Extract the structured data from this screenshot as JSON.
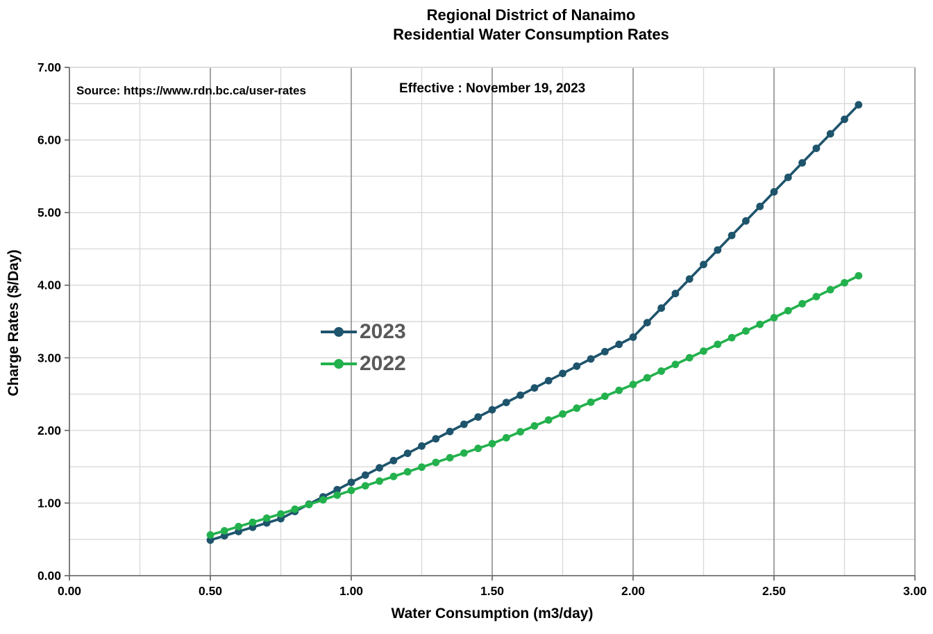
{
  "title": {
    "line1": "Regional District of Nanaimo",
    "line2": "Residential Water Consumption Rates"
  },
  "annotations": {
    "source": "Source: https://www.rdn.bc.ca/user-rates",
    "effective": "Effective : November 19, 2023"
  },
  "legend": [
    {
      "label": "2023",
      "color": "#1E546C"
    },
    {
      "label": "2022",
      "color": "#23B14D"
    }
  ],
  "colors": {
    "series_2023": "#1E546C",
    "series_2022": "#23B14D",
    "legend_text": "#595959",
    "grid_minor": "#D9D9D9",
    "grid_major": "#8C8C8C",
    "axis_line": "#6E6E6E",
    "tick_text": "#000000"
  },
  "chart_data": {
    "type": "line",
    "title": "Regional District of Nanaimo — Residential Water Consumption Rates",
    "xlabel": "Water Consumption (m3/day)",
    "ylabel": "Charge Rates ($/Day)",
    "xlim": [
      0.0,
      3.0
    ],
    "ylim": [
      0.0,
      7.0
    ],
    "x_ticks": [
      "0.00",
      "0.50",
      "1.00",
      "1.50",
      "2.00",
      "2.50",
      "3.00"
    ],
    "y_ticks": [
      "0.00",
      "1.00",
      "2.00",
      "3.00",
      "4.00",
      "5.00",
      "6.00",
      "7.00"
    ],
    "grid": {
      "vertical_minor_step": 0.25,
      "vertical_major_step": 0.5,
      "horizontal_step": 0.5
    },
    "legend_position": "center-left inside plot",
    "x": [
      0.5,
      0.55,
      0.6,
      0.65,
      0.7,
      0.75,
      0.8,
      0.85,
      0.9,
      0.95,
      1.0,
      1.05,
      1.1,
      1.15,
      1.2,
      1.25,
      1.3,
      1.35,
      1.4,
      1.45,
      1.5,
      1.55,
      1.6,
      1.65,
      1.7,
      1.75,
      1.8,
      1.85,
      1.9,
      1.95,
      2.0,
      2.05,
      2.1,
      2.15,
      2.2,
      2.25,
      2.3,
      2.35,
      2.4,
      2.45,
      2.5,
      2.55,
      2.6,
      2.65,
      2.7,
      2.75,
      2.8
    ],
    "series": [
      {
        "name": "2023",
        "color": "#1E546C",
        "values": [
          0.49,
          0.549,
          0.608,
          0.667,
          0.726,
          0.785,
          0.885,
          0.985,
          1.085,
          1.185,
          1.285,
          1.385,
          1.485,
          1.585,
          1.685,
          1.785,
          1.885,
          1.985,
          2.085,
          2.185,
          2.285,
          2.385,
          2.485,
          2.585,
          2.685,
          2.785,
          2.885,
          2.985,
          3.085,
          3.185,
          3.285,
          3.485,
          3.685,
          3.885,
          4.085,
          4.285,
          4.485,
          4.685,
          4.885,
          5.085,
          5.285,
          5.485,
          5.685,
          5.885,
          6.085,
          6.285,
          6.485
        ]
      },
      {
        "name": "2022",
        "color": "#23B14D",
        "values": [
          0.56,
          0.618,
          0.676,
          0.734,
          0.792,
          0.85,
          0.915,
          0.979,
          1.044,
          1.108,
          1.173,
          1.237,
          1.302,
          1.366,
          1.431,
          1.495,
          1.56,
          1.624,
          1.689,
          1.753,
          1.818,
          1.899,
          1.981,
          2.063,
          2.144,
          2.226,
          2.307,
          2.389,
          2.47,
          2.552,
          2.633,
          2.725,
          2.817,
          2.909,
          3.001,
          3.093,
          3.185,
          3.277,
          3.369,
          3.461,
          3.553,
          3.649,
          3.745,
          3.842,
          3.938,
          4.034,
          4.13
        ]
      }
    ]
  }
}
